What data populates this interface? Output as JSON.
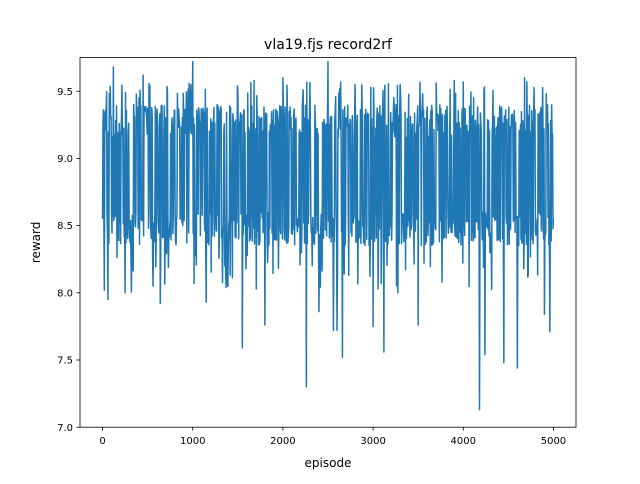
{
  "chart_data": {
    "type": "line",
    "title": "vla19.fjs record2rf",
    "xlabel": "episode",
    "ylabel": "reward",
    "xlim": [
      -250,
      5250
    ],
    "ylim": [
      7.0,
      9.75
    ],
    "x_ticks": [
      0,
      1000,
      2000,
      3000,
      4000,
      5000
    ],
    "x_tick_labels": [
      "0",
      "1000",
      "2000",
      "3000",
      "4000",
      "5000"
    ],
    "y_ticks": [
      7.0,
      7.5,
      8.0,
      8.5,
      9.0,
      9.5
    ],
    "y_tick_labels": [
      "7.0",
      "7.5",
      "8.0",
      "8.5",
      "9.0",
      "9.5"
    ],
    "grid": false,
    "legend": "none",
    "series": [
      {
        "color": "#1f77b4",
        "n_episodes": 5000,
        "typical_band": [
          8.35,
          9.4
        ],
        "x": [
          0,
          60,
          120,
          250,
          450,
          560,
          640,
          1000,
          1150,
          1550,
          1680,
          1800,
          2000,
          2260,
          2400,
          2500,
          2560,
          2600,
          2660,
          2800,
          3000,
          3120,
          3300,
          3500,
          3900,
          4180,
          4240,
          4450,
          4600,
          4680,
          4900,
          4960,
          5000
        ],
        "y": [
          8.55,
          7.95,
          9.68,
          8.0,
          9.62,
          8.05,
          7.92,
          9.72,
          7.93,
          7.59,
          9.58,
          7.76,
          9.6,
          7.3,
          7.86,
          9.72,
          7.72,
          7.72,
          7.52,
          9.55,
          7.75,
          7.56,
          9.55,
          7.76,
          9.58,
          7.13,
          7.54,
          7.48,
          7.44,
          9.6,
          7.84,
          7.71,
          8.55
        ]
      }
    ]
  }
}
